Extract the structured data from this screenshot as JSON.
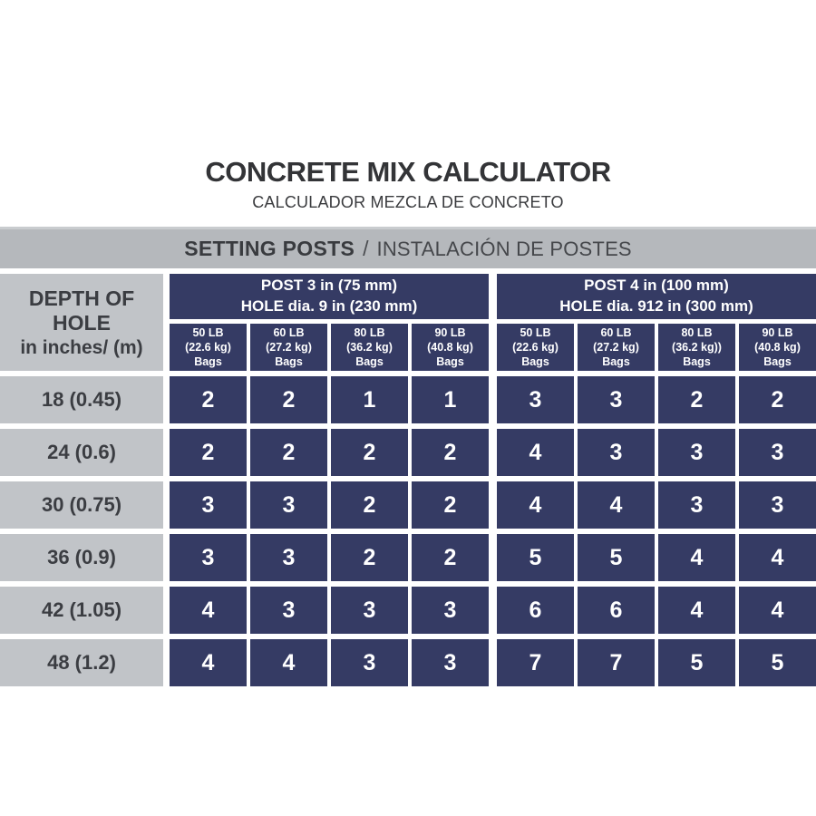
{
  "title": "CONCRETE MIX CALCULATOR",
  "subtitle": "CALCULADOR MEZCLA DE CONCRETO",
  "banner": {
    "primary": "SETTING POSTS",
    "separator": "/",
    "secondary": "INSTALACIÓN DE POSTES"
  },
  "colors": {
    "navy_cell": "#353b64",
    "banner_gray": "#b5b8bc",
    "label_gray": "#c1c4c8",
    "text_dark": "#3b3d42",
    "cell_text": "#ffffff"
  },
  "chart_data": {
    "type": "table",
    "title": "CONCRETE MIX CALCULATOR",
    "subtitle": "CALCULADOR MEZCLA DE CONCRETO",
    "section": "SETTING POSTS / INSTALACIÓN DE POSTES",
    "row_header": {
      "line1": "DEPTH OF HOLE",
      "line2": "in inches/ (m)"
    },
    "groups": [
      {
        "title": [
          "POST 3 in (75 mm)",
          "HOLE dia. 9 in (230 mm)"
        ],
        "columns": [
          [
            "50 LB",
            "(22.6 kg)",
            "Bags"
          ],
          [
            "60 LB",
            "(27.2 kg)",
            "Bags"
          ],
          [
            "80 LB",
            "(36.2 kg)",
            "Bags"
          ],
          [
            "90 LB",
            "(40.8 kg)",
            "Bags"
          ]
        ]
      },
      {
        "title": [
          "POST 4 in (100 mm)",
          "HOLE dia. 912 in (300 mm)"
        ],
        "columns": [
          [
            "50 LB",
            "(22.6 kg)",
            "Bags"
          ],
          [
            "60 LB",
            "(27.2 kg)",
            "Bags"
          ],
          [
            "80 LB",
            "(36.2 kg))",
            "Bags"
          ],
          [
            "90 LB",
            "(40.8 kg)",
            "Bags"
          ]
        ]
      }
    ],
    "rows": [
      {
        "depth": "18 (0.45)",
        "values": [
          2,
          2,
          1,
          1,
          3,
          3,
          2,
          2
        ]
      },
      {
        "depth": "24 (0.6)",
        "values": [
          2,
          2,
          2,
          2,
          4,
          3,
          3,
          3
        ]
      },
      {
        "depth": "30 (0.75)",
        "values": [
          3,
          3,
          2,
          2,
          4,
          4,
          3,
          3
        ]
      },
      {
        "depth": "36 (0.9)",
        "values": [
          3,
          3,
          2,
          2,
          5,
          5,
          4,
          4
        ]
      },
      {
        "depth": "42 (1.05)",
        "values": [
          4,
          3,
          3,
          3,
          6,
          6,
          4,
          4
        ]
      },
      {
        "depth": "48 (1.2)",
        "values": [
          4,
          4,
          3,
          3,
          7,
          7,
          5,
          5
        ]
      }
    ]
  }
}
